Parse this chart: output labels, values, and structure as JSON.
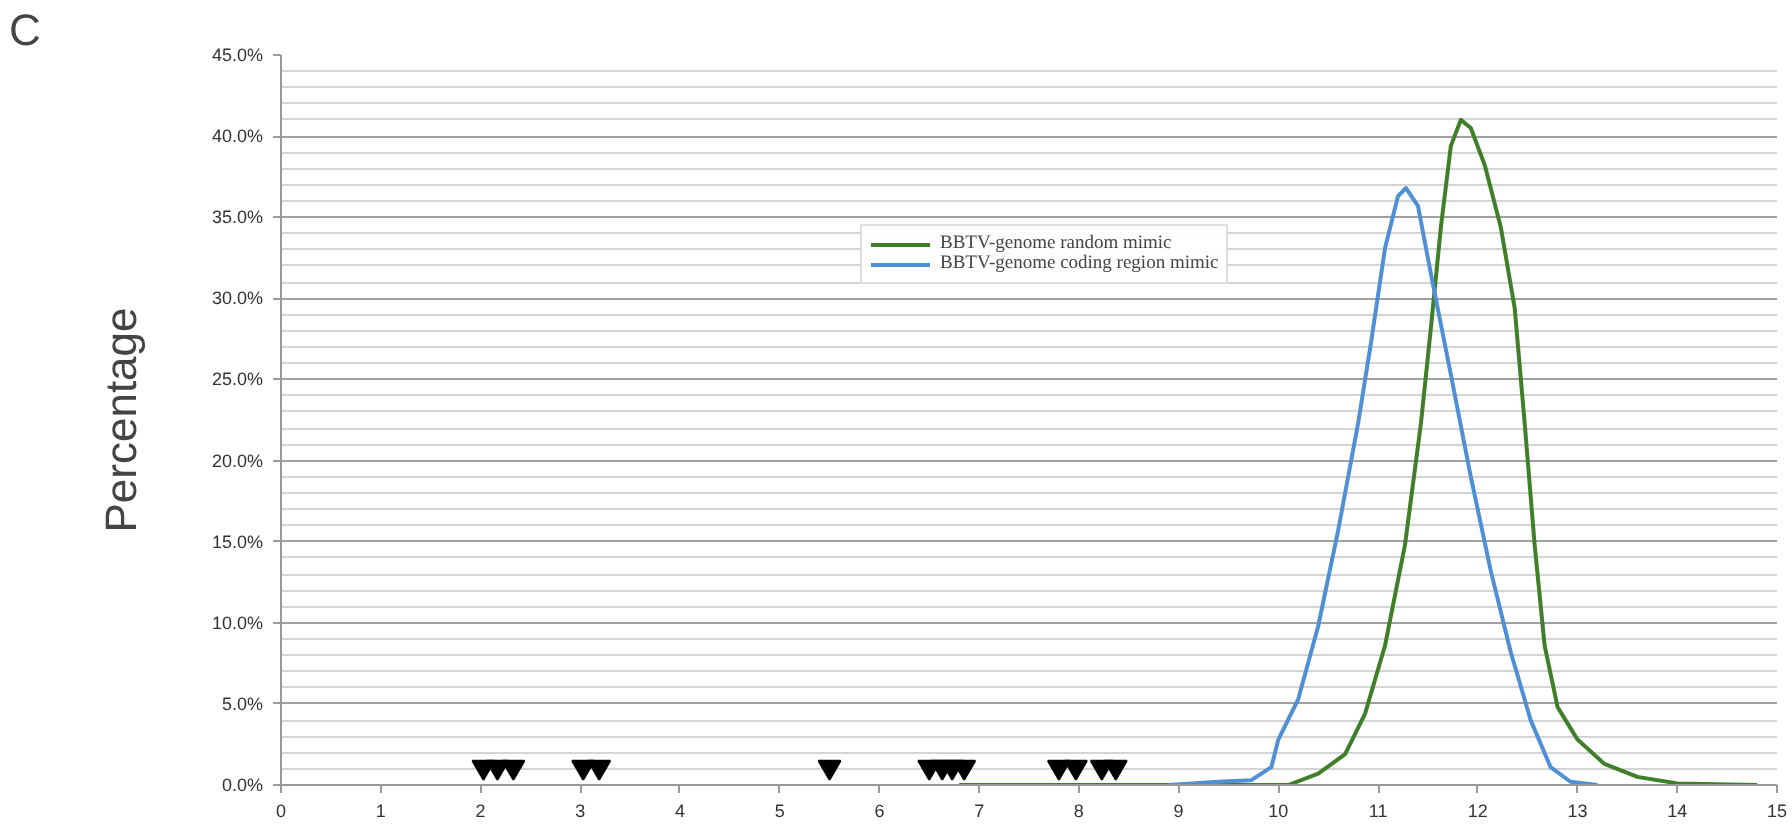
{
  "chart_data": {
    "type": "line",
    "ylabel": "Percentage",
    "annotations": [
      "C"
    ],
    "xlim": [
      0,
      15
    ],
    "xticks": [
      0,
      1,
      2,
      3,
      4,
      5,
      6,
      7,
      8,
      9,
      10,
      11,
      12,
      13,
      14,
      15
    ],
    "ylim": [
      0,
      45
    ],
    "yticks": [
      {
        "value": 0,
        "label": "0.0%"
      },
      {
        "value": 5,
        "label": "5.0%"
      },
      {
        "value": 10,
        "label": "10.0%"
      },
      {
        "value": 15,
        "label": "15.0%"
      },
      {
        "value": 20,
        "label": "20.0%"
      },
      {
        "value": 25,
        "label": "25.0%"
      },
      {
        "value": 30,
        "label": "30.0%"
      },
      {
        "value": 35,
        "label": "35.0%"
      },
      {
        "value": 40,
        "label": "40.0%"
      },
      {
        "value": 45,
        "label": "45.0%"
      }
    ],
    "grid": "y",
    "legend": "top",
    "line_style": "solid",
    "series": [
      {
        "name": "BBTV-genome random mimic",
        "color": "#3f7f2a",
        "x": [
          6.8,
          10.1,
          10.4,
          10.67,
          10.87,
          11.07,
          11.27,
          11.43,
          11.53,
          11.63,
          11.73,
          11.83,
          11.93,
          12.07,
          12.23,
          12.37,
          12.47,
          12.57,
          12.67,
          12.8,
          13.0,
          13.27,
          13.6,
          14.0,
          14.8
        ],
        "values": [
          0,
          0,
          0.7,
          1.9,
          4.4,
          8.6,
          14.8,
          22.3,
          28.2,
          34.4,
          39.4,
          41.0,
          40.5,
          38.2,
          34.4,
          29.4,
          22.3,
          14.8,
          8.6,
          4.8,
          2.8,
          1.3,
          0.5,
          0.1,
          0
        ]
      },
      {
        "name": "BBTV-genome coding region mimic",
        "color": "#4f8fd6",
        "x": [
          8.9,
          9.4,
          9.73,
          9.93,
          10.0,
          10.2,
          10.4,
          10.6,
          10.8,
          10.93,
          11.07,
          11.2,
          11.28,
          11.4,
          11.53,
          11.73,
          11.93,
          12.13,
          12.33,
          12.53,
          12.73,
          12.93,
          13.2
        ],
        "values": [
          0,
          0.2,
          0.3,
          1.1,
          2.8,
          5.3,
          9.8,
          15.7,
          22.3,
          27.3,
          33.1,
          36.3,
          36.8,
          35.7,
          31.5,
          25.3,
          19.0,
          13.2,
          8.2,
          4.0,
          1.1,
          0.2,
          0
        ]
      },
      {
        "type": "scatter",
        "marker": "triangle",
        "color": "#000000",
        "x": [
          2.03,
          2.17,
          2.33,
          3.03,
          3.19,
          5.5,
          6.5,
          6.63,
          6.73,
          6.85,
          7.8,
          7.97,
          8.23,
          8.37
        ],
        "values": [
          1.1,
          1.1,
          1.1,
          1.1,
          1.1,
          1.1,
          1.1,
          1.1,
          1.1,
          1.1,
          1.1,
          1.1,
          1.1,
          1.1
        ]
      }
    ]
  }
}
